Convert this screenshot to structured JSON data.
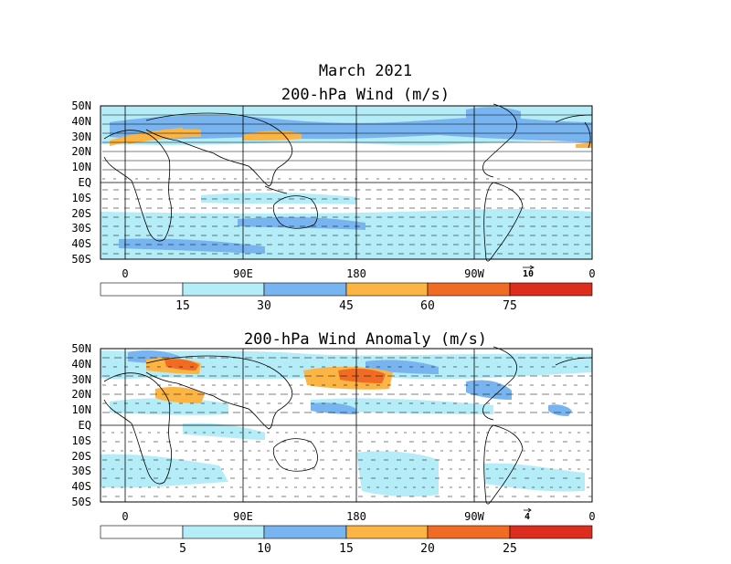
{
  "title": "March 2021",
  "panels": [
    {
      "id": "wind",
      "title": "200-hPa Wind (m/s)",
      "lat_labels": [
        "50N",
        "40N",
        "30N",
        "20N",
        "10N",
        "EQ",
        "10S",
        "20S",
        "30S",
        "40S",
        "50S"
      ],
      "lon_labels": [
        "0",
        "90E",
        "180",
        "90W",
        "0"
      ],
      "reference_vector": "10",
      "colorbar": {
        "colors": [
          "#ffffff",
          "#b4ecf8",
          "#78b4f0",
          "#fcb444",
          "#f06c24",
          "#dc2d1e"
        ],
        "labels": [
          "15",
          "30",
          "45",
          "60",
          "75"
        ]
      }
    },
    {
      "id": "anomaly",
      "title": "200-hPa Wind Anomaly (m/s)",
      "lat_labels": [
        "50N",
        "40N",
        "30N",
        "20N",
        "10N",
        "EQ",
        "10S",
        "20S",
        "30S",
        "40S",
        "50S"
      ],
      "lon_labels": [
        "0",
        "90E",
        "180",
        "90W",
        "0"
      ],
      "reference_vector": "4",
      "colorbar": {
        "colors": [
          "#ffffff",
          "#b4ecf8",
          "#78b4f0",
          "#fcb444",
          "#f06c24",
          "#dc2d1e"
        ],
        "labels": [
          "5",
          "10",
          "15",
          "20",
          "25"
        ]
      }
    }
  ]
}
